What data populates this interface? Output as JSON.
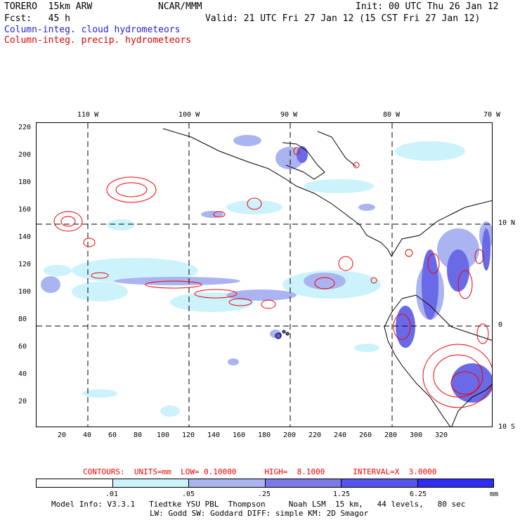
{
  "header": {
    "model": "TORERO  15km ARW",
    "org": "NCAR/MMM",
    "init": "Init: 00 UTC Thu 26 Jan 12",
    "fcst": "Fcst:   45 h",
    "valid": "Valid: 21 UTC Fri 27 Jan 12 (15 CST Fri 27 Jan 12)",
    "field1": "Column-integ. cloud hydrometeors",
    "field2": "Column-integ. precip. hydrometeors"
  },
  "colors": {
    "field1": "#2222cc",
    "field2": "#dd0000",
    "contour": "#ee0000",
    "legend": [
      "#ffffff",
      "#ccf2fb",
      "#aab4f0",
      "#7a7ae8",
      "#5555ee",
      "#2e2ef2"
    ]
  },
  "axes": {
    "x_ticks": [
      "20",
      "40",
      "60",
      "80",
      "100",
      "120",
      "140",
      "160",
      "180",
      "200",
      "220",
      "240",
      "260",
      "280",
      "300",
      "320"
    ],
    "y_ticks": [
      "20",
      "40",
      "60",
      "80",
      "100",
      "120",
      "140",
      "160",
      "180",
      "200",
      "220"
    ],
    "lon_labels": [
      "110 W",
      "100 W",
      "90 W",
      "80 W",
      "70 W"
    ],
    "lat_labels": [
      "10 N",
      "0",
      "10 S"
    ]
  },
  "footer": {
    "contours": "CONTOURS:  UNITS=mm  LOW= 0.10000      HIGH=  8.1000      INTERVAL=X  3.0000",
    "legend_values": [
      ".01",
      ".05",
      ".25",
      "1.25",
      "6.25"
    ],
    "legend_units": "mm",
    "info1": "Model Info: V3.3.1   Tiedtke YSU PBL  Thompson     Noah LSM  15 km,   44 levels,   80 sec",
    "info2": "LW: Godd SW: Goddard DIFF: simple KM: 2D Smagor"
  }
}
